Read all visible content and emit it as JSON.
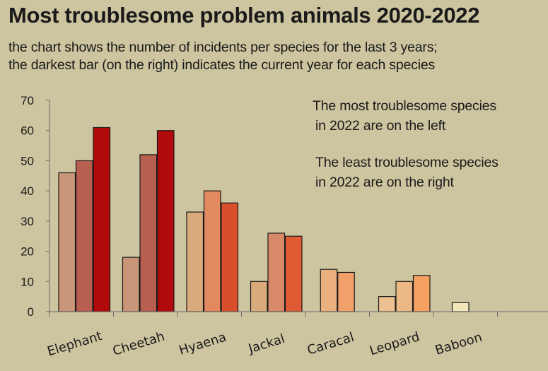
{
  "title": "Most troublesome problem animals 2020-2022",
  "subtitle_line1": "the chart shows the number of incidents per species for the last 3 years;",
  "subtitle_line2": "the darkest bar (on the right) indicates the current year for each species",
  "notes": {
    "most_line1": "The most troublesome species",
    "most_line2": "in 2022 are on the left",
    "least_line1": "The least troublesome species",
    "least_line2": "in 2022 are on the right"
  },
  "chart_data": {
    "type": "bar",
    "categories": [
      "Elephant",
      "Cheetah",
      "Hyaena",
      "Jackal",
      "Caracal",
      "Leopard",
      "Baboon"
    ],
    "values_by_category": [
      [
        46,
        50,
        61
      ],
      [
        18,
        52,
        60
      ],
      [
        33,
        40,
        36
      ],
      [
        10,
        26,
        25
      ],
      [
        14,
        13
      ],
      [
        5,
        10,
        12
      ],
      [
        3
      ]
    ],
    "ylim": [
      0,
      70
    ],
    "yticks": [
      0,
      10,
      20,
      30,
      40,
      50,
      60,
      70
    ],
    "grid": false,
    "colors_by_category": [
      [
        "#c9967a",
        "#b85f4f",
        "#b00a0a"
      ],
      [
        "#c9967a",
        "#b85f4f",
        "#b00a0a"
      ],
      [
        "#d8aa7c",
        "#e3895f",
        "#d94f2c"
      ],
      [
        "#d8aa7c",
        "#d88a68",
        "#e05a34"
      ],
      [
        "#eab080",
        "#f0a068"
      ],
      [
        "#ecc090",
        "#ebb886",
        "#f4a060"
      ],
      [
        "#f3e6b8"
      ]
    ]
  }
}
